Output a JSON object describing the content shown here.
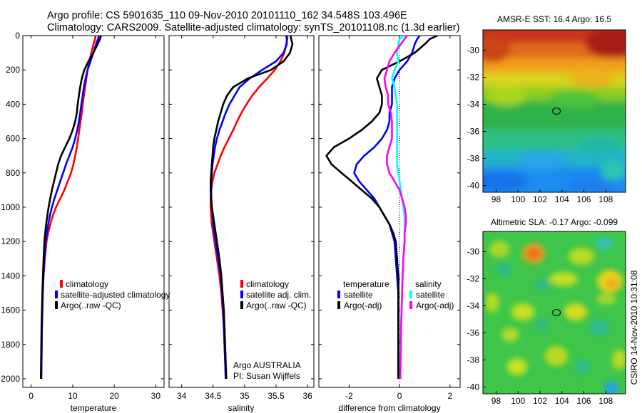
{
  "header": {
    "line1": "Argo profile: CS 5901635_110 09-Nov-2010 20101110_162 34.548S 103.496E",
    "line2": "Climatology: CARS2009. Satellite-adjusted climatology: synTS_20101108.nc (1.3d earlier)"
  },
  "side_label": "CSIRO 14-Nov-2010 10:31:08",
  "colors": {
    "red": "#ff0000",
    "blue": "#0000ff",
    "black": "#000000",
    "cyan": "#00ffff",
    "magenta": "#ff00ff"
  },
  "chart_data": [
    {
      "type": "line",
      "name": "temperature-panel",
      "xlabel": "temperature",
      "xlim": [
        -2,
        32
      ],
      "ylim": [
        2050,
        0
      ],
      "xticks": [
        "0",
        "10",
        "20",
        "30"
      ],
      "xtick_values": [
        0,
        10,
        20,
        30
      ],
      "yticks": [
        "0",
        "200",
        "400",
        "600",
        "800",
        "1000",
        "1200",
        "1400",
        "1600",
        "1800",
        "2000"
      ],
      "ytick_values": [
        0,
        200,
        400,
        600,
        800,
        1000,
        1200,
        1400,
        1600,
        1800,
        2000
      ],
      "depth": [
        0,
        20,
        50,
        100,
        150,
        200,
        250,
        300,
        350,
        400,
        450,
        500,
        550,
        600,
        650,
        700,
        750,
        800,
        850,
        900,
        950,
        1000,
        1050,
        1100,
        1150,
        1200,
        1300,
        1400,
        1500,
        1600,
        1700,
        1800,
        1900,
        2000
      ],
      "series": [
        {
          "name": "climatology",
          "color": "red",
          "values": [
            15.5,
            15.4,
            15.0,
            14.5,
            14.0,
            13.6,
            13.3,
            13.0,
            12.7,
            12.4,
            12.2,
            11.9,
            11.6,
            11.3,
            11.0,
            10.6,
            10.2,
            9.6,
            8.8,
            8.0,
            7.0,
            6.0,
            5.2,
            4.6,
            4.1,
            3.7,
            3.3,
            3.0,
            2.8,
            2.7,
            2.6,
            2.55,
            2.5,
            2.45
          ]
        },
        {
          "name": "satellite-adjusted climatology",
          "color": "blue",
          "values": [
            16.3,
            16.1,
            15.6,
            15.0,
            14.3,
            13.6,
            13.1,
            12.7,
            12.4,
            12.1,
            11.8,
            11.5,
            11.1,
            10.6,
            10.0,
            9.2,
            8.4,
            7.7,
            7.0,
            6.3,
            5.6,
            5.0,
            4.5,
            4.1,
            3.8,
            3.5,
            3.2,
            2.95,
            2.8,
            2.7,
            2.6,
            2.55,
            2.5,
            2.45
          ]
        },
        {
          "name": "Argo(..raw -QC)",
          "color": "black",
          "values": [
            16.8,
            16.6,
            16.0,
            15.0,
            13.8,
            12.8,
            12.2,
            11.8,
            11.5,
            11.2,
            11.0,
            10.6,
            10.0,
            9.2,
            8.2,
            7.2,
            6.5,
            6.0,
            5.5,
            5.0,
            4.6,
            4.2,
            3.9,
            3.6,
            3.4,
            3.2,
            3.0,
            2.85,
            2.7,
            2.6,
            2.5,
            2.45,
            2.4,
            2.35
          ]
        }
      ],
      "legend": [
        "climatology",
        "satellite-adjusted climatology",
        "Argo(..raw -QC)"
      ]
    },
    {
      "type": "line",
      "name": "salinity-panel",
      "xlabel": "salinity",
      "xlim": [
        33.8,
        36.1
      ],
      "ylim": [
        2050,
        0
      ],
      "xticks": [
        "34",
        "34.5",
        "35",
        "35.5",
        "36"
      ],
      "xtick_values": [
        34,
        34.5,
        35,
        35.5,
        36
      ],
      "depth": [
        0,
        20,
        50,
        100,
        150,
        200,
        250,
        300,
        350,
        400,
        450,
        500,
        550,
        600,
        650,
        700,
        750,
        800,
        850,
        900,
        950,
        1000,
        1050,
        1100,
        1150,
        1200,
        1300,
        1400,
        1500,
        1600,
        1700,
        1800,
        1900,
        2000
      ],
      "series": [
        {
          "name": "climatology",
          "color": "red",
          "values": [
            35.68,
            35.68,
            35.66,
            35.63,
            35.57,
            35.48,
            35.36,
            35.23,
            35.12,
            35.03,
            34.95,
            34.88,
            34.82,
            34.75,
            34.68,
            34.62,
            34.57,
            34.52,
            34.49,
            34.47,
            34.46,
            34.46,
            34.47,
            34.48,
            34.5,
            34.52,
            34.56,
            34.6,
            34.63,
            34.65,
            34.67,
            34.68,
            34.69,
            34.7
          ]
        },
        {
          "name": "satellite adj. clim.",
          "color": "blue",
          "values": [
            35.66,
            35.67,
            35.67,
            35.62,
            35.5,
            35.28,
            35.08,
            34.92,
            34.84,
            34.76,
            34.7,
            34.65,
            34.6,
            34.56,
            34.53,
            34.51,
            34.49,
            34.48,
            34.47,
            34.47,
            34.47,
            34.48,
            34.49,
            34.5,
            34.52,
            34.54,
            34.58,
            34.62,
            34.64,
            34.66,
            34.67,
            34.68,
            34.69,
            34.7
          ]
        },
        {
          "name": "Argo(..raw -QC)",
          "color": "black",
          "values": [
            35.73,
            35.74,
            35.76,
            35.72,
            35.62,
            35.42,
            35.05,
            34.82,
            34.72,
            34.66,
            34.62,
            34.58,
            34.55,
            34.52,
            34.5,
            34.49,
            34.48,
            34.47,
            34.46,
            34.46,
            34.47,
            34.48,
            34.5,
            34.52,
            34.54,
            34.56,
            34.6,
            34.63,
            34.65,
            34.67,
            34.68,
            34.69,
            34.7,
            34.71
          ]
        }
      ],
      "legend": [
        "climatology",
        "satellite adj. clim.",
        "Argo(..raw -QC)"
      ],
      "annotation": [
        "Argo AUSTRALIA",
        "PI: Susan Wijffels"
      ]
    },
    {
      "type": "line",
      "name": "difference-panel",
      "xlabel": "difference from climatology",
      "xlim": [
        -3.2,
        2.4
      ],
      "ylim": [
        2050,
        0
      ],
      "xticks": [
        "-2",
        "0",
        "2"
      ],
      "xtick_values": [
        -2,
        0,
        2
      ],
      "depth": [
        0,
        20,
        50,
        100,
        150,
        200,
        250,
        300,
        350,
        400,
        450,
        500,
        550,
        600,
        650,
        700,
        750,
        800,
        850,
        900,
        950,
        1000,
        1050,
        1100,
        1150,
        1200,
        1300,
        1400,
        1500,
        1600,
        1700,
        1800,
        1900,
        2000
      ],
      "series": [
        {
          "name": "temperature satellite",
          "color": "blue",
          "values": [
            0.8,
            0.7,
            0.6,
            0.5,
            0.3,
            0.0,
            -0.2,
            -0.3,
            -0.3,
            -0.3,
            -0.4,
            -0.4,
            -0.5,
            -0.7,
            -1.0,
            -1.4,
            -1.7,
            -1.8,
            -1.6,
            -1.3,
            -1.0,
            -0.8,
            -0.6,
            -0.4,
            -0.3,
            -0.2,
            -0.15,
            -0.1,
            -0.05,
            -0.05,
            -0.05,
            -0.05,
            -0.05,
            -0.05
          ]
        },
        {
          "name": "temperature Argo(-adj)",
          "color": "black",
          "values": [
            1.5,
            1.2,
            1.0,
            0.6,
            0.0,
            -0.7,
            -0.9,
            -0.8,
            -0.7,
            -0.7,
            -0.8,
            -1.1,
            -1.5,
            -2.0,
            -2.6,
            -2.9,
            -2.7,
            -2.3,
            -1.9,
            -1.5,
            -1.1,
            -0.8,
            -0.6,
            -0.4,
            -0.25,
            -0.15,
            -0.1,
            -0.05,
            -0.05,
            -0.05,
            -0.05,
            -0.05,
            -0.05,
            -0.05
          ]
        },
        {
          "name": "salinity satellite",
          "color": "cyan",
          "values": [
            0.2,
            0.0,
            -0.05,
            -0.1,
            -0.05,
            -0.2,
            -0.3,
            -0.2,
            -0.15,
            -0.1,
            -0.1,
            -0.1,
            -0.1,
            -0.1,
            -0.1,
            -0.1,
            -0.1,
            -0.05,
            0.0,
            0.05,
            0.1,
            0.15,
            0.2,
            0.2,
            0.2,
            0.2,
            0.15,
            0.12,
            0.1,
            0.08,
            0.06,
            0.05,
            0.04,
            0.03
          ]
        },
        {
          "name": "salinity Argo(-adj)",
          "color": "magenta",
          "values": [
            0.3,
            0.2,
            0.05,
            -0.2,
            -0.4,
            -0.5,
            -0.6,
            -0.55,
            -0.45,
            -0.45,
            -0.35,
            -0.3,
            -0.3,
            -0.3,
            -0.4,
            -0.5,
            -0.5,
            -0.4,
            -0.2,
            0.0,
            0.1,
            0.2,
            0.25,
            0.25,
            0.2,
            0.2,
            0.15,
            0.12,
            0.1,
            0.08,
            0.06,
            0.05,
            0.04,
            0.03
          ]
        }
      ],
      "legend_headers": [
        "temperature",
        "salinity"
      ],
      "legend": [
        "satellite",
        "Argo(-adj)",
        "satellite",
        "Argo(-adj)"
      ]
    },
    {
      "type": "heatmap",
      "name": "sst-map",
      "title": "AMSR-E SST: 16.4 Argo: 16.5",
      "xticks": [
        "98",
        "100",
        "102",
        "104",
        "106",
        "108"
      ],
      "xtick_values": [
        98,
        100,
        102,
        104,
        106,
        108
      ],
      "yticks": [
        "-30",
        "-32",
        "-34",
        "-36",
        "-38",
        "-40"
      ],
      "ytick_values": [
        -30,
        -32,
        -34,
        -36,
        -38,
        -40
      ],
      "xlim": [
        96.8,
        109.8
      ],
      "ylim": [
        -40.5,
        -28.5
      ],
      "float_position": [
        103.5,
        -34.5
      ]
    },
    {
      "type": "heatmap",
      "name": "sla-map",
      "title": "Altimetric SLA: -0.17 Argo: -0.099",
      "xticks": [
        "98",
        "100",
        "102",
        "104",
        "106",
        "108"
      ],
      "xtick_values": [
        98,
        100,
        102,
        104,
        106,
        108
      ],
      "yticks": [
        "-30",
        "-32",
        "-34",
        "-36",
        "-38",
        "-40"
      ],
      "ytick_values": [
        -30,
        -32,
        -34,
        -36,
        -38,
        -40
      ],
      "xlim": [
        96.8,
        109.8
      ],
      "ylim": [
        -40.5,
        -28.5
      ],
      "float_position": [
        103.5,
        -34.5
      ]
    }
  ]
}
